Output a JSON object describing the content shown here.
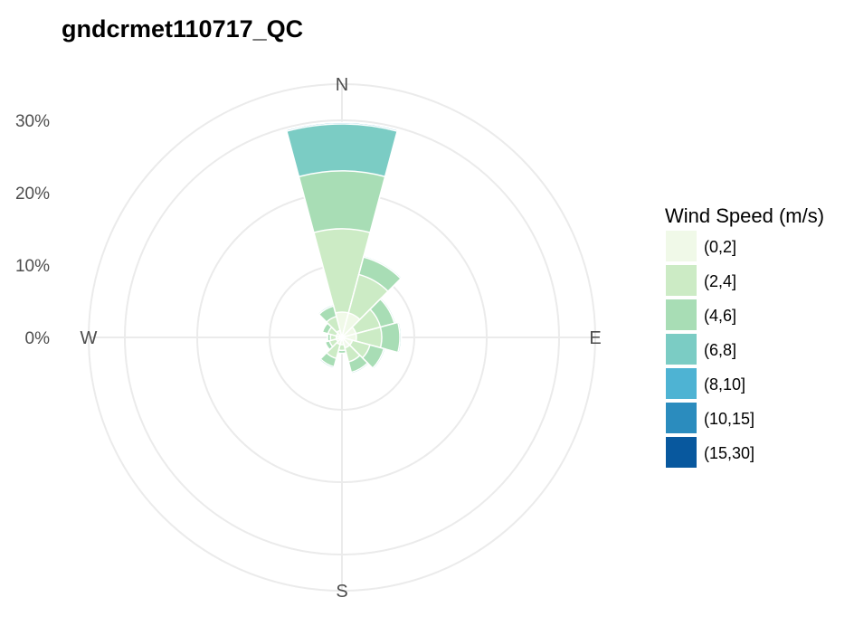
{
  "chart_data": {
    "type": "windrose",
    "title": "gndcrmet110717_QC",
    "radial_axis": {
      "ticks": [
        0,
        10,
        20,
        30
      ],
      "tick_labels": [
        "0%",
        "10%",
        "20%",
        "30%"
      ],
      "max": 35
    },
    "direction_labels": [
      "N",
      "E",
      "S",
      "W"
    ],
    "grid": true,
    "legend": {
      "title": "Wind Speed (m/s)",
      "position": "right",
      "bins": [
        {
          "label": "(0,2]",
          "color": "#f0f9e8"
        },
        {
          "label": "(2,4]",
          "color": "#ccebc5"
        },
        {
          "label": "(4,6]",
          "color": "#a8ddb5"
        },
        {
          "label": "(6,8]",
          "color": "#7bccc4"
        },
        {
          "label": "(8,10]",
          "color": "#4eb3d3"
        },
        {
          "label": "(10,15]",
          "color": "#2b8cbe"
        },
        {
          "label": "(15,30]",
          "color": "#08589e"
        }
      ]
    },
    "sector_width_deg": 30,
    "sectors": [
      {
        "direction_deg": 0,
        "values": [
          3.5,
          11.5,
          8.0,
          6.5,
          0.2,
          0,
          0
        ]
      },
      {
        "direction_deg": 30,
        "values": [
          3.5,
          5.5,
          2.5,
          0.2,
          0,
          0,
          0
        ]
      },
      {
        "direction_deg": 60,
        "values": [
          2.0,
          3.5,
          2.0,
          0.2,
          0,
          0,
          0
        ]
      },
      {
        "direction_deg": 90,
        "values": [
          2.0,
          3.5,
          2.5,
          0.2,
          0,
          0,
          0
        ]
      },
      {
        "direction_deg": 120,
        "values": [
          1.5,
          2.5,
          2.0,
          0.2,
          0,
          0,
          0
        ]
      },
      {
        "direction_deg": 150,
        "values": [
          1.5,
          2.0,
          1.5,
          0.2,
          0,
          0,
          0
        ]
      },
      {
        "direction_deg": 180,
        "values": [
          1.0,
          0.8,
          0.4,
          0,
          0,
          0,
          0
        ]
      },
      {
        "direction_deg": 210,
        "values": [
          1.0,
          2.0,
          1.2,
          0.2,
          0,
          0,
          0
        ]
      },
      {
        "direction_deg": 240,
        "values": [
          0.8,
          1.0,
          0.6,
          0,
          0,
          0,
          0
        ]
      },
      {
        "direction_deg": 270,
        "values": [
          0.8,
          0.8,
          0.4,
          0,
          0,
          0,
          0
        ]
      },
      {
        "direction_deg": 300,
        "values": [
          0.8,
          1.2,
          0.8,
          0,
          0,
          0,
          0
        ]
      },
      {
        "direction_deg": 330,
        "values": [
          1.0,
          2.0,
          1.5,
          0.2,
          0,
          0,
          0
        ]
      }
    ]
  }
}
